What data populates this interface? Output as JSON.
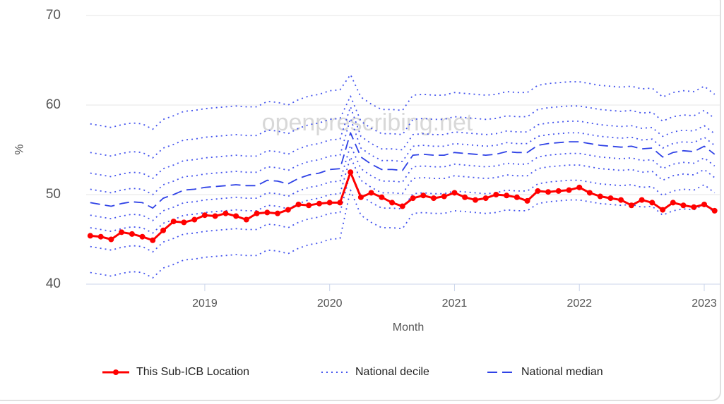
{
  "chart_data": {
    "type": "line",
    "watermark": "openprescribing.net",
    "x_label": "Month",
    "y_label": "%",
    "xlim": [
      2018.05,
      2023.13
    ],
    "xticks": [
      2019,
      2020,
      2021,
      2022,
      2023
    ],
    "ylim": [
      40,
      70
    ],
    "yticks": [
      40,
      50,
      60,
      70
    ],
    "grid": true,
    "legend": "bottom",
    "x": [
      2018.083,
      2018.167,
      2018.25,
      2018.333,
      2018.417,
      2018.5,
      2018.583,
      2018.667,
      2018.75,
      2018.833,
      2018.917,
      2019,
      2019.083,
      2019.167,
      2019.25,
      2019.333,
      2019.417,
      2019.5,
      2019.583,
      2019.667,
      2019.75,
      2019.833,
      2019.917,
      2020,
      2020.083,
      2020.167,
      2020.25,
      2020.333,
      2020.417,
      2020.5,
      2020.583,
      2020.667,
      2020.75,
      2020.833,
      2020.917,
      2021,
      2021.083,
      2021.167,
      2021.25,
      2021.333,
      2021.417,
      2021.5,
      2021.583,
      2021.667,
      2021.75,
      2021.833,
      2021.917,
      2022,
      2022.083,
      2022.167,
      2022.25,
      2022.333,
      2022.417,
      2022.5,
      2022.583,
      2022.667,
      2022.75,
      2022.833,
      2022.917,
      2023,
      2023.083
    ],
    "series": [
      {
        "name": "This Sub-ICB Location",
        "color": "#ff0000",
        "style": "solid",
        "markers": true,
        "values": [
          45.4,
          45.3,
          45.0,
          45.8,
          45.6,
          45.3,
          44.9,
          46.0,
          47.0,
          46.9,
          47.2,
          47.7,
          47.6,
          47.9,
          47.6,
          47.2,
          47.9,
          48.0,
          47.9,
          48.3,
          48.9,
          48.8,
          49.0,
          49.1,
          49.1,
          52.5,
          49.7,
          50.2,
          49.7,
          49.1,
          48.7,
          49.6,
          49.9,
          49.6,
          49.8,
          50.2,
          49.7,
          49.4,
          49.6,
          50.0,
          49.9,
          49.7,
          49.3,
          50.4,
          50.3,
          50.4,
          50.5,
          50.8,
          50.2,
          49.8,
          49.6,
          49.4,
          48.8,
          49.4,
          49.1,
          48.3,
          49.1,
          48.8,
          48.6,
          48.9,
          48.2
        ]
      },
      {
        "name": "National decile",
        "color": "#4454ee",
        "style": "dotted",
        "markers": false,
        "lines": [
          [
            57.9,
            57.7,
            57.5,
            57.8,
            58.0,
            57.9,
            57.3,
            58.4,
            58.8,
            59.3,
            59.4,
            59.6,
            59.7,
            59.8,
            59.9,
            59.8,
            59.8,
            60.4,
            60.3,
            60.0,
            60.6,
            61.0,
            61.2,
            61.6,
            61.7,
            63.4,
            60.9,
            60.1,
            59.5,
            59.5,
            59.4,
            61.1,
            61.2,
            61.1,
            61.1,
            61.4,
            61.3,
            61.2,
            61.1,
            61.2,
            61.5,
            61.4,
            61.4,
            62.2,
            62.4,
            62.5,
            62.6,
            62.6,
            62.4,
            62.2,
            62.1,
            62.0,
            62.1,
            61.8,
            61.9,
            60.9,
            61.4,
            61.6,
            61.5,
            62.1,
            61.2
          ],
          [
            54.7,
            54.5,
            54.3,
            54.6,
            54.8,
            54.7,
            54.1,
            55.2,
            55.6,
            56.1,
            56.2,
            56.4,
            56.5,
            56.6,
            56.7,
            56.6,
            56.6,
            57.2,
            57.1,
            56.8,
            57.4,
            57.8,
            58.0,
            58.4,
            58.5,
            61.0,
            58.2,
            57.4,
            56.8,
            56.8,
            56.7,
            58.4,
            58.5,
            58.4,
            58.4,
            58.7,
            58.6,
            58.5,
            58.4,
            58.5,
            58.8,
            58.7,
            58.7,
            59.5,
            59.7,
            59.8,
            59.9,
            59.9,
            59.7,
            59.5,
            59.4,
            59.3,
            59.4,
            59.1,
            59.2,
            58.2,
            58.7,
            58.9,
            58.8,
            59.4,
            58.5
          ],
          [
            52.4,
            52.2,
            52.0,
            52.3,
            52.5,
            52.4,
            51.8,
            52.9,
            53.3,
            53.8,
            53.9,
            54.1,
            54.2,
            54.3,
            54.4,
            54.3,
            54.3,
            54.9,
            54.8,
            54.5,
            55.1,
            55.5,
            55.7,
            56.1,
            56.2,
            59.8,
            56.5,
            55.7,
            55.1,
            55.1,
            55.0,
            56.7,
            56.8,
            56.7,
            56.7,
            57.0,
            56.9,
            56.8,
            56.7,
            56.8,
            57.1,
            57.0,
            57.0,
            57.8,
            58.0,
            58.1,
            58.2,
            58.2,
            58.0,
            57.8,
            57.7,
            57.6,
            57.7,
            57.4,
            57.5,
            56.5,
            57.0,
            57.2,
            57.1,
            57.7,
            56.8
          ],
          [
            50.6,
            50.4,
            50.2,
            50.5,
            50.7,
            50.6,
            50.0,
            51.1,
            51.5,
            52.0,
            52.1,
            52.3,
            52.4,
            52.5,
            52.6,
            52.5,
            52.5,
            53.1,
            53.0,
            52.7,
            53.3,
            53.7,
            53.9,
            54.3,
            54.4,
            58.5,
            55.2,
            54.4,
            53.8,
            53.8,
            53.7,
            55.4,
            55.5,
            55.4,
            55.4,
            55.7,
            55.6,
            55.5,
            55.4,
            55.5,
            55.8,
            55.7,
            55.7,
            56.5,
            56.7,
            56.8,
            56.9,
            56.9,
            56.7,
            56.5,
            56.4,
            56.3,
            56.4,
            56.1,
            56.2,
            55.2,
            55.7,
            55.9,
            55.8,
            56.4,
            55.5
          ],
          [
            47.7,
            47.5,
            47.3,
            47.6,
            47.8,
            47.7,
            47.1,
            48.2,
            48.6,
            49.1,
            49.2,
            49.4,
            49.5,
            49.6,
            49.7,
            49.6,
            49.6,
            50.2,
            50.1,
            49.8,
            50.4,
            50.8,
            51.0,
            51.4,
            51.5,
            55.5,
            52.9,
            52.1,
            51.5,
            51.5,
            51.4,
            53.1,
            53.2,
            53.1,
            53.1,
            53.4,
            53.3,
            53.2,
            53.1,
            53.2,
            53.5,
            53.4,
            53.4,
            54.2,
            54.4,
            54.5,
            54.6,
            54.6,
            54.4,
            54.2,
            54.1,
            54.0,
            54.1,
            53.8,
            53.9,
            52.9,
            53.4,
            53.6,
            53.5,
            54.1,
            53.2
          ],
          [
            46.3,
            46.1,
            45.9,
            46.2,
            46.4,
            46.3,
            45.7,
            46.8,
            47.2,
            47.7,
            47.8,
            48.0,
            48.1,
            48.2,
            48.3,
            48.2,
            48.2,
            48.8,
            48.7,
            48.4,
            49.0,
            49.4,
            49.6,
            50.0,
            50.1,
            54.2,
            51.6,
            50.8,
            50.2,
            50.2,
            50.1,
            51.8,
            51.9,
            51.8,
            51.8,
            52.1,
            52.0,
            51.9,
            51.8,
            51.9,
            52.2,
            52.1,
            52.1,
            52.9,
            53.1,
            53.2,
            53.3,
            53.3,
            53.1,
            52.9,
            52.8,
            52.7,
            52.8,
            52.5,
            52.6,
            51.6,
            52.1,
            52.3,
            52.2,
            52.8,
            51.9
          ],
          [
            44.2,
            44.0,
            43.8,
            44.1,
            44.3,
            44.2,
            43.6,
            44.7,
            45.1,
            45.6,
            45.7,
            45.9,
            46.0,
            46.1,
            46.2,
            46.1,
            46.1,
            46.7,
            46.6,
            46.3,
            46.9,
            47.3,
            47.5,
            47.9,
            48.0,
            52.5,
            49.9,
            49.1,
            48.5,
            48.5,
            48.4,
            50.1,
            50.2,
            50.1,
            50.1,
            50.4,
            50.3,
            50.2,
            50.1,
            50.2,
            50.5,
            50.4,
            50.4,
            51.2,
            51.4,
            51.5,
            51.6,
            51.6,
            51.4,
            51.2,
            51.1,
            51.0,
            51.1,
            50.8,
            50.9,
            49.9,
            50.4,
            50.6,
            50.5,
            51.1,
            50.2
          ],
          [
            41.3,
            41.1,
            40.9,
            41.2,
            41.4,
            41.3,
            40.7,
            41.8,
            42.2,
            42.7,
            42.8,
            43.0,
            43.1,
            43.2,
            43.3,
            43.2,
            43.2,
            43.8,
            43.7,
            43.4,
            44.0,
            44.4,
            44.6,
            45.0,
            45.1,
            50.5,
            47.7,
            46.9,
            46.3,
            46.3,
            46.2,
            47.9,
            48.0,
            47.9,
            47.9,
            48.2,
            48.1,
            48.0,
            47.9,
            48.0,
            48.3,
            48.2,
            48.2,
            49.0,
            49.2,
            49.3,
            49.4,
            49.4,
            49.2,
            49.0,
            48.9,
            48.8,
            48.9,
            48.6,
            48.7,
            47.7,
            48.2,
            48.4,
            48.3,
            48.9,
            48.0
          ]
        ]
      },
      {
        "name": "National median",
        "color": "#2f42e6",
        "style": "dashed",
        "markers": false,
        "values": [
          49.1,
          48.9,
          48.7,
          49.0,
          49.2,
          49.1,
          48.5,
          49.6,
          50.0,
          50.5,
          50.6,
          50.8,
          50.9,
          51.0,
          51.1,
          51.0,
          51.0,
          51.6,
          51.5,
          51.2,
          51.8,
          52.2,
          52.4,
          52.8,
          52.9,
          56.9,
          54.2,
          53.4,
          52.8,
          52.8,
          52.7,
          54.4,
          54.5,
          54.4,
          54.4,
          54.7,
          54.6,
          54.5,
          54.4,
          54.5,
          54.8,
          54.7,
          54.7,
          55.5,
          55.7,
          55.8,
          55.9,
          55.9,
          55.7,
          55.5,
          55.4,
          55.3,
          55.4,
          55.1,
          55.2,
          54.2,
          54.7,
          54.9,
          54.8,
          55.4,
          54.5
        ]
      }
    ]
  }
}
